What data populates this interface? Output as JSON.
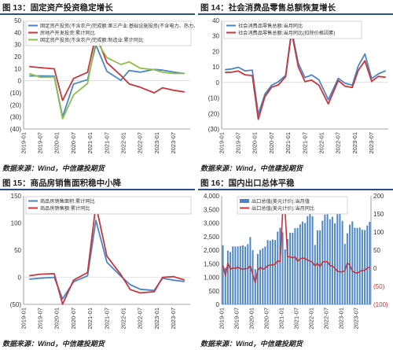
{
  "colors": {
    "blue": "#4a86c5",
    "red": "#c7353d",
    "green": "#8dbf4d",
    "axis": "#888888",
    "rule": "#2b4f8a"
  },
  "x_labels": [
    "2019-01",
    "2019-07",
    "2020-01",
    "2020-07",
    "2021-01",
    "2021-07",
    "2022-01",
    "2022-07",
    "2023-01",
    "2023-07"
  ],
  "source": "数据来源：Wind，中信建投期货",
  "panels": [
    {
      "title": "图 13：固定资产投资稳定增长",
      "chart_data": {
        "type": "line",
        "xlim": [
          "2019-01",
          "2023-12"
        ],
        "ylim": [
          -40,
          50
        ],
        "yticks": [
          "50",
          "40",
          "30",
          "20",
          "10",
          "0",
          "(10)",
          "(20)",
          "(30)",
          "(40)"
        ],
        "legend": [
          "固定资产投资(不含农户)完成额:第三产业:基础设施投资(不含电力、热力、燃气及水生产和供应业):累计同比",
          "房地产开发投资:累计同比",
          "固定资产投资(不含农户)完成额:制造业:累计同比"
        ],
        "series": [
          {
            "name": "固定资产投资(不含农户)完成额:第三产业:基础设施投资(不含电力、热力、燃气及水生产和供应业):累计同比",
            "color": "blue",
            "values": [
              [
                2019.17,
                4
              ],
              [
                2019.5,
                4
              ],
              [
                2019.92,
                3.8
              ],
              [
                2020.17,
                -30
              ],
              [
                2020.5,
                -2.7
              ],
              [
                2020.92,
                0.9
              ],
              [
                2021.17,
                29.7
              ],
              [
                2021.5,
                7.8
              ],
              [
                2021.92,
                0.4
              ],
              [
                2022.17,
                8.5
              ],
              [
                2022.5,
                7.1
              ],
              [
                2022.92,
                9.4
              ],
              [
                2023.17,
                8.8
              ],
              [
                2023.5,
                7.2
              ],
              [
                2023.83,
                6
              ]
            ]
          },
          {
            "name": "房地产开发投资:累计同比",
            "color": "red",
            "values": [
              [
                2019.17,
                11.8
              ],
              [
                2019.5,
                10.9
              ],
              [
                2019.92,
                9.9
              ],
              [
                2020.17,
                -16.3
              ],
              [
                2020.5,
                1.9
              ],
              [
                2020.92,
                7
              ],
              [
                2021.17,
                38.3
              ],
              [
                2021.5,
                15
              ],
              [
                2021.92,
                4.4
              ],
              [
                2022.17,
                -2.7
              ],
              [
                2022.5,
                -5.4
              ],
              [
                2022.92,
                -10
              ],
              [
                2023.17,
                -5.8
              ],
              [
                2023.5,
                -7.9
              ],
              [
                2023.83,
                -9.3
              ]
            ]
          },
          {
            "name": "固定资产投资(不含农户)完成额:制造业:累计同比",
            "color": "green",
            "values": [
              [
                2019.17,
                5.9
              ],
              [
                2019.5,
                3
              ],
              [
                2019.92,
                3.1
              ],
              [
                2020.17,
                -31.5
              ],
              [
                2020.5,
                -11.7
              ],
              [
                2020.92,
                -2.2
              ],
              [
                2021.17,
                33.8
              ],
              [
                2021.5,
                19.2
              ],
              [
                2021.92,
                13.5
              ],
              [
                2022.17,
                15.6
              ],
              [
                2022.5,
                10.4
              ],
              [
                2022.92,
                9.1
              ],
              [
                2023.17,
                7
              ],
              [
                2023.5,
                6
              ],
              [
                2023.83,
                6.2
              ]
            ]
          }
        ]
      }
    },
    {
      "title": "图 14：社会消费品零售总额恢复增长",
      "chart_data": {
        "type": "line",
        "xlim": [
          "2019-01",
          "2023-12"
        ],
        "ylim": [
          -30,
          40
        ],
        "yticks": [
          "40",
          "30",
          "20",
          "10",
          "0",
          "(10)",
          "(20)",
          "(30)"
        ],
        "legend": [
          "社会消费品零售总额:当月同比",
          "社会消费品零售总额:当月同比(扣除价格因素)"
        ],
        "series": [
          {
            "name": "社会消费品零售总额:当月同比",
            "color": "blue",
            "values": [
              [
                2019.1,
                8.2
              ],
              [
                2019.3,
                8.7
              ],
              [
                2019.5,
                9.8
              ],
              [
                2019.7,
                7.5
              ],
              [
                2019.92,
                8
              ],
              [
                2020.1,
                -20.5
              ],
              [
                2020.3,
                -7.5
              ],
              [
                2020.5,
                -1.8
              ],
              [
                2020.7,
                0.5
              ],
              [
                2020.92,
                4.6
              ],
              [
                2021.1,
                33.8
              ],
              [
                2021.3,
                12.4
              ],
              [
                2021.5,
                3.1
              ],
              [
                2021.7,
                4.9
              ],
              [
                2021.92,
                1.7
              ],
              [
                2022.2,
                -11.1
              ],
              [
                2022.5,
                2.7
              ],
              [
                2022.7,
                -0.5
              ],
              [
                2022.92,
                -1.8
              ],
              [
                2023.1,
                10.6
              ],
              [
                2023.3,
                18.4
              ],
              [
                2023.5,
                2.5
              ],
              [
                2023.7,
                5.5
              ],
              [
                2023.92,
                7.6
              ]
            ]
          },
          {
            "name": "社会消费品零售总额:当月同比(扣除价格因素)",
            "color": "red",
            "values": [
              [
                2019.1,
                6.5
              ],
              [
                2019.3,
                6.6
              ],
              [
                2019.5,
                7.4
              ],
              [
                2019.7,
                4.9
              ],
              [
                2019.92,
                4.5
              ],
              [
                2020.1,
                -23.7
              ],
              [
                2020.3,
                -9.1
              ],
              [
                2020.5,
                -3
              ],
              [
                2020.7,
                -1.6
              ],
              [
                2020.92,
                3.8
              ],
              [
                2021.1,
                32.6
              ],
              [
                2021.3,
                10
              ],
              [
                2021.5,
                0.6
              ],
              [
                2021.7,
                1.5
              ],
              [
                2021.92,
                -1.8
              ],
              [
                2022.2,
                -13.8
              ],
              [
                2022.5,
                1.3
              ],
              [
                2022.7,
                -2.4
              ],
              [
                2022.92,
                -3.2
              ],
              [
                2023.1,
                7.8
              ],
              [
                2023.3,
                14
              ],
              [
                2023.5,
                0.7
              ],
              [
                2023.7,
                3.9
              ],
              [
                2023.92,
                3.4
              ]
            ]
          }
        ]
      }
    },
    {
      "title": "图 15：商品房销售面积稳中小降",
      "chart_data": {
        "type": "line",
        "xlim": [
          "2019-01",
          "2023-12"
        ],
        "ylim": [
          -50,
          150
        ],
        "yticks": [
          "150",
          "100",
          "50",
          "0",
          "(50)"
        ],
        "legend": [
          "商品房销售面积:累计同比",
          "商品房销售额:累计同比"
        ],
        "series": [
          {
            "name": "商品房销售面积:累计同比",
            "color": "blue",
            "values": [
              [
                2019.17,
                -3.6
              ],
              [
                2019.5,
                -1.8
              ],
              [
                2019.92,
                -0.1
              ],
              [
                2020.17,
                -39.9
              ],
              [
                2020.5,
                -8.4
              ],
              [
                2020.92,
                2.6
              ],
              [
                2021.17,
                104.9
              ],
              [
                2021.5,
                27.7
              ],
              [
                2021.92,
                1.9
              ],
              [
                2022.2,
                -13.8
              ],
              [
                2022.5,
                -22.2
              ],
              [
                2022.92,
                -24.3
              ],
              [
                2023.17,
                -1.8
              ],
              [
                2023.5,
                -5.3
              ],
              [
                2023.83,
                -8
              ]
            ]
          },
          {
            "name": "商品房销售额:累计同比",
            "color": "red",
            "values": [
              [
                2019.17,
                2.8
              ],
              [
                2019.5,
                5.6
              ],
              [
                2019.92,
                6.5
              ],
              [
                2020.17,
                -49.7
              ],
              [
                2020.5,
                -5.4
              ],
              [
                2020.92,
                8.7
              ],
              [
                2021.17,
                133.4
              ],
              [
                2021.5,
                38.9
              ],
              [
                2021.92,
                4.8
              ],
              [
                2022.2,
                -22.7
              ],
              [
                2022.5,
                -28.9
              ],
              [
                2022.92,
                -26.7
              ],
              [
                2023.17,
                -0.1
              ],
              [
                2023.5,
                1.1
              ],
              [
                2023.83,
                -5
              ]
            ]
          }
        ]
      }
    },
    {
      "title": "图 16：国内出口总体平稳",
      "chart_data": {
        "type": "bar",
        "xlim": [
          "2019-01",
          "2023-12"
        ],
        "ylim": [
          0,
          4000
        ],
        "yticks": [
          "4,000",
          "3,500",
          "3,000",
          "2,500",
          "2,000",
          "1,500",
          "1,000",
          "500",
          "0"
        ],
        "ylim_right": [
          -100,
          200
        ],
        "yticks_right": [
          "200",
          "150",
          "100",
          "50",
          "0",
          "(50)",
          "(100)"
        ],
        "legend": [
          "出口总值(美元计价):当月值",
          "出口总值(美元计价):当月同比"
        ],
        "series": [
          {
            "name": "出口总值(美元计价):当月值",
            "color": "blue",
            "values": [
              2180,
              1350,
              1980,
              1930,
              2140,
              2130,
              2140,
              2150,
              2180,
              2130,
              2220,
              2480,
              2000,
              1300,
              1860,
              2010,
              2070,
              2130,
              2370,
              2350,
              2390,
              2370,
              2680,
              2820,
              2660,
              2030,
              2410,
              2640,
              2640,
              2810,
              2820,
              2950,
              3050,
              3000,
              3250,
              3400,
              3250,
              2190,
              2730,
              2730,
              3080,
              3310,
              3320,
              3140,
              3230,
              2990,
              3550,
              3640,
              3080,
              2230,
              2620,
              2940,
              3060,
              2830,
              2820,
              2830,
              2750,
              2740,
              2910,
              3040
            ]
          },
          {
            "name": "出口总值(美元计价):当月同比",
            "color": "red",
            "values": [
              8,
              -21,
              14,
              -3,
              1,
              -1,
              3,
              -1,
              -3,
              -1,
              -1,
              7,
              -17,
              -40,
              -6,
              3,
              -3,
              0,
              7,
              9,
              9,
              11,
              21,
              18,
              155,
              155,
              31,
              32,
              28,
              32,
              19,
              26,
              28,
              27,
              22,
              20,
              16,
              6,
              14,
              4,
              17,
              18,
              18,
              7,
              6,
              0,
              -9,
              -10,
              -10,
              -7,
              15,
              8,
              -8,
              -12,
              -14,
              -9,
              -6,
              -6,
              1,
              2
            ]
          }
        ]
      }
    }
  ]
}
